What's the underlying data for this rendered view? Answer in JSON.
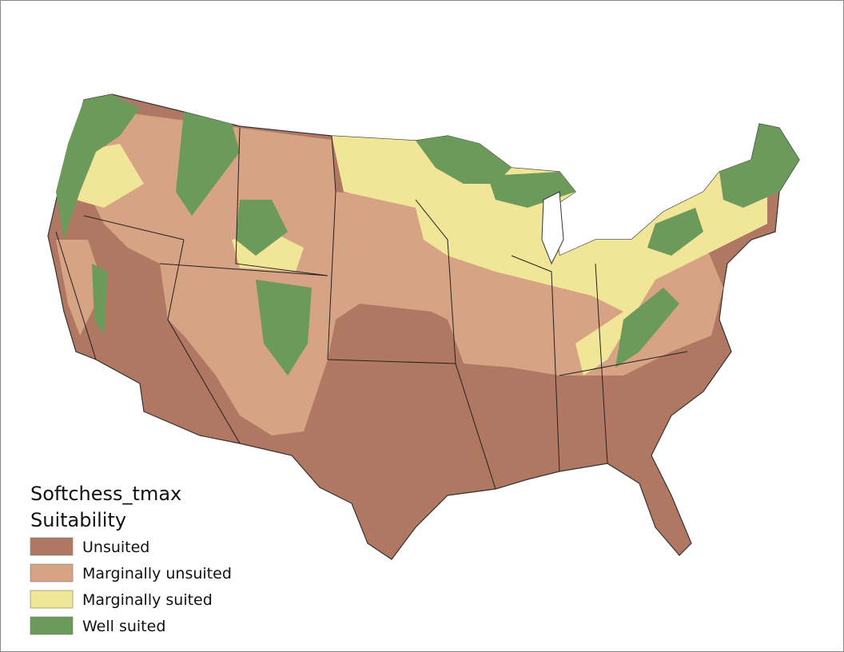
{
  "legend": {
    "title": [
      "Softchess_tmax",
      "Suitability"
    ],
    "items": [
      {
        "label": "Unsuited",
        "color": "#b07862"
      },
      {
        "label": "Marginally unsuited",
        "color": "#d6a384"
      },
      {
        "label": "Marginally suited",
        "color": "#f1e597"
      },
      {
        "label": "Well suited",
        "color": "#6c9a5a"
      }
    ]
  }
}
